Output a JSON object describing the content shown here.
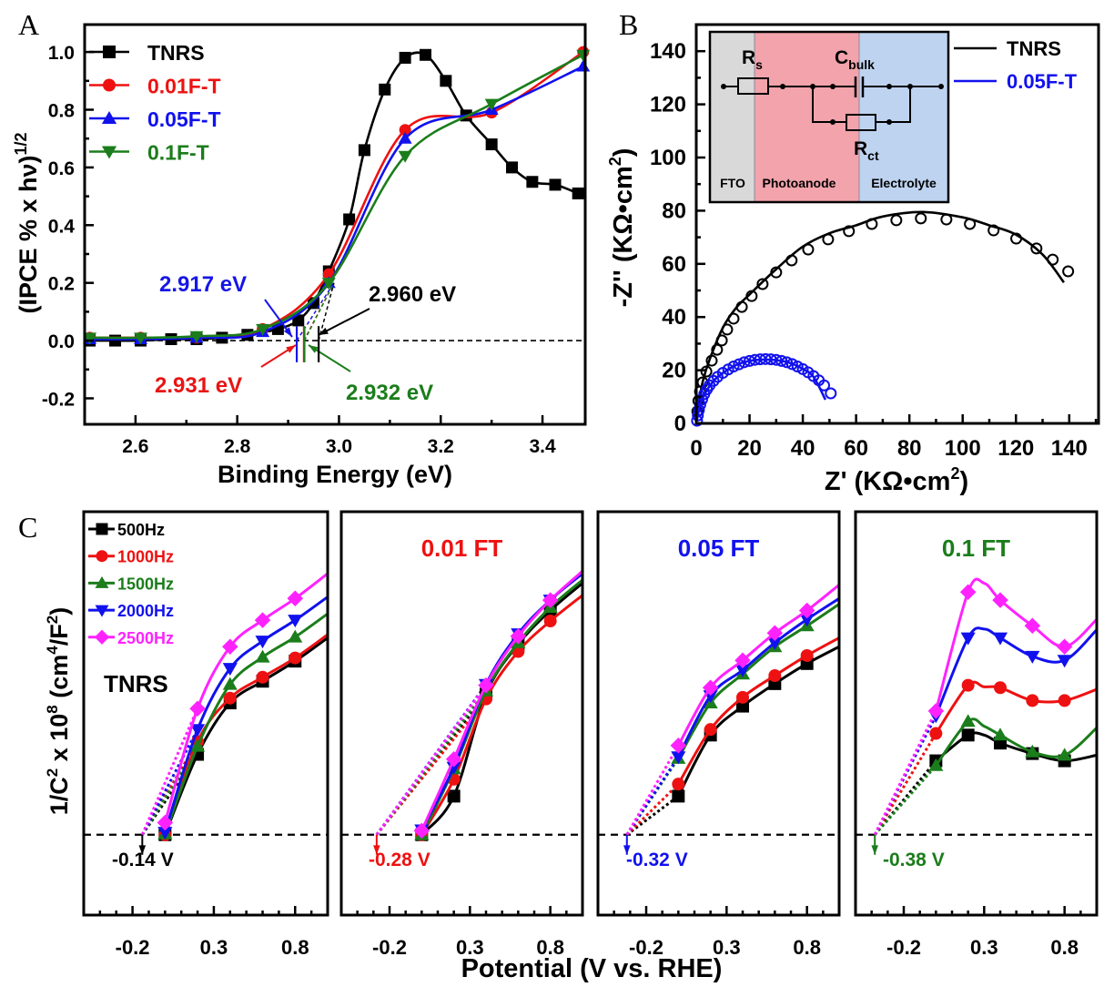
{
  "panel_labels": {
    "a": "A",
    "b": "B",
    "c": "C"
  },
  "colors": {
    "black": "#000000",
    "red": "#ee1111",
    "blue": "#1111ee",
    "green": "#1b7d1b",
    "magenta": "#ff22ff"
  },
  "chart_data": [
    {
      "panel": "A",
      "type": "line",
      "xlabel": "Binding Energy (eV)",
      "ylabel": "(IPCE % x hν)",
      "ylabel_sup": "1/2",
      "xlim": [
        2.5,
        3.484
      ],
      "ylim": [
        -0.29,
        1.095
      ],
      "grid": false,
      "xticks": [
        2.6,
        2.8,
        3.0,
        3.2,
        3.4
      ],
      "xtick_labels": [
        "2.6",
        "2.8",
        "3.0",
        "3.2",
        "3.4"
      ],
      "yticks": [
        -0.2,
        0.0,
        0.2,
        0.4,
        0.6,
        0.8,
        1.0
      ],
      "ytick_labels": [
        "-0.2",
        "0.0",
        "0.2",
        "0.4",
        "0.6",
        "0.8",
        "1.0"
      ],
      "legend_position": "top-left",
      "baseline": 0,
      "series": [
        {
          "name": "TNRS",
          "color": "#000000",
          "marker": "square",
          "x": [
            2.51,
            2.56,
            2.61,
            2.67,
            2.72,
            2.77,
            2.82,
            2.88,
            2.92,
            2.95,
            2.98,
            3.02,
            3.05,
            3.09,
            3.13,
            3.17,
            3.21,
            3.25,
            3.3,
            3.34,
            3.38,
            3.425,
            3.47
          ],
          "y": [
            0.0,
            0.0,
            0.0,
            0.005,
            0.005,
            0.01,
            0.02,
            0.04,
            0.07,
            0.13,
            0.24,
            0.42,
            0.66,
            0.87,
            0.98,
            0.99,
            0.9,
            0.78,
            0.68,
            0.6,
            0.55,
            0.54,
            0.51
          ]
        },
        {
          "name": "0.01F-T",
          "color": "#ee1111",
          "marker": "circle",
          "x": [
            2.51,
            2.61,
            2.72,
            2.85,
            2.98,
            3.13,
            3.3,
            3.48
          ],
          "y": [
            0.01,
            0.01,
            0.01,
            0.04,
            0.23,
            0.73,
            0.79,
            1.0
          ]
        },
        {
          "name": "0.05F-T",
          "color": "#1111ee",
          "marker": "triangle-up",
          "x": [
            2.51,
            2.61,
            2.72,
            2.85,
            2.98,
            3.13,
            3.3,
            3.48
          ],
          "y": [
            0.005,
            0.005,
            0.01,
            0.03,
            0.2,
            0.7,
            0.8,
            0.95
          ]
        },
        {
          "name": "0.1F-T",
          "color": "#1b7d1b",
          "marker": "triangle-down",
          "x": [
            2.51,
            2.61,
            2.72,
            2.85,
            2.98,
            3.13,
            3.3,
            3.48
          ],
          "y": [
            0.01,
            0.01,
            0.015,
            0.04,
            0.2,
            0.64,
            0.82,
            0.99
          ]
        }
      ],
      "annotations": [
        {
          "label": "2.917 eV",
          "value": 2.917,
          "color": "#1616e6"
        },
        {
          "label": "2.931 eV",
          "value": 2.931,
          "color": "#e81414"
        },
        {
          "label": "2.932 eV",
          "value": 2.932,
          "color": "#1b7d1b"
        },
        {
          "label": "2.960 eV",
          "value": 2.96,
          "color": "#000000"
        }
      ]
    },
    {
      "panel": "B",
      "type": "scatter",
      "xlabel": "Z' (KΩ•cm",
      "xlabel_sup": "2",
      "xlabel_end": ")",
      "ylabel": "-Z'' (KΩ•cm",
      "ylabel_sup": "2",
      "ylabel_end": ")",
      "xlim": [
        0,
        151
      ],
      "ylim": [
        0,
        150
      ],
      "grid": false,
      "xticks": [
        0,
        20,
        40,
        60,
        80,
        100,
        120,
        140
      ],
      "xtick_labels": [
        "0",
        "20",
        "40",
        "60",
        "80",
        "100",
        "120",
        "140"
      ],
      "yticks": [
        0,
        20,
        40,
        60,
        80,
        100,
        120,
        140
      ],
      "ytick_labels": [
        "0",
        "20",
        "40",
        "60",
        "80",
        "100",
        "120",
        "140"
      ],
      "legend_position": "top-right",
      "series": [
        {
          "name": "TNRS",
          "color": "#000000",
          "points_x": [
            0.4,
            0.8,
            1.4,
            2.4,
            3.8,
            5.8,
            7.8,
            9.6,
            11.6,
            14.0,
            17.1,
            20.8,
            24.9,
            30.0,
            35.8,
            42.0,
            49.5,
            57.3,
            65.9,
            75.1,
            84.3,
            93.9,
            102.7,
            111.6,
            120.1,
            127.7,
            133.8,
            139.6
          ],
          "points_y": [
            4.5,
            8.5,
            12.0,
            15.4,
            19.5,
            23.6,
            27.7,
            31.2,
            35.3,
            39.4,
            43.8,
            47.9,
            52.4,
            56.8,
            61.3,
            65.4,
            69.2,
            72.3,
            75.0,
            76.4,
            77.1,
            76.7,
            75.0,
            72.6,
            69.5,
            65.8,
            61.6,
            57.2
          ],
          "fit_x": [
            0.2,
            1,
            2.5,
            5,
            10,
            15,
            20,
            30,
            40,
            50,
            60,
            70,
            85,
            100,
            110,
            120,
            130,
            138
          ],
          "fit_y": [
            2,
            8,
            16,
            24,
            36,
            43.5,
            48.5,
            58,
            66.5,
            71.5,
            74.5,
            77.8,
            79.5,
            77.5,
            74.5,
            71,
            63.5,
            53
          ]
        },
        {
          "name": "0.05F-T",
          "color": "#1111ee",
          "points_x": [
            0.3,
            0.6,
            1,
            1.5,
            2.2,
            3,
            4,
            5,
            6.5,
            8,
            10,
            12,
            14,
            16,
            18,
            20,
            22,
            24,
            26,
            28,
            30,
            32,
            34,
            36,
            38,
            40,
            42,
            44,
            46,
            48,
            50.5
          ],
          "points_y": [
            1,
            3,
            5,
            7,
            9,
            11,
            12.8,
            14.3,
            16,
            17.5,
            19,
            20.3,
            21.4,
            22.2,
            23,
            23.5,
            23.9,
            24.1,
            24.2,
            24.1,
            23.9,
            23.5,
            23,
            22.3,
            21.4,
            20.4,
            19.2,
            17.8,
            16.2,
            14.3,
            11.3
          ],
          "fit_x": [
            0.2,
            1,
            2,
            4,
            7,
            10,
            15,
            20,
            25,
            30,
            35,
            40,
            44,
            48.5
          ],
          "fit_y": [
            1,
            5,
            8.5,
            12.5,
            16.5,
            19,
            22,
            23.5,
            24,
            23.8,
            22.8,
            20.5,
            17.5,
            8.9
          ]
        }
      ],
      "inset": {
        "regions": [
          {
            "label": "FTO",
            "color": "#d9d9d9"
          },
          {
            "label": "Photoanode",
            "color": "#f2a3ab"
          },
          {
            "label": "Electrolyte",
            "color": "#bed3f0"
          }
        ],
        "rs": {
          "main": "R",
          "sub": "s"
        },
        "cbulk": {
          "main": "C",
          "sub": "bulk"
        },
        "rct": {
          "main": "R",
          "sub": "ct"
        }
      }
    },
    {
      "panel": "C",
      "type": "line",
      "xlabel": "Potential (V vs. RHE)",
      "ylabel_parts": [
        "1/C",
        "2",
        " x 10",
        "8",
        " (cm",
        "4",
        "/F",
        "2",
        ")"
      ],
      "xlim": [
        -0.5,
        1.0
      ],
      "ylim": [
        -1.0,
        4.02
      ],
      "grid": false,
      "xticks": [
        -0.2,
        0.3,
        0.8
      ],
      "xtick_labels": [
        "-0.2",
        "0.3",
        "0.8"
      ],
      "legend_position": "top-left",
      "legend": [
        {
          "name": "500Hz",
          "color": "#000000",
          "marker": "square"
        },
        {
          "name": "1000Hz",
          "color": "#ee1111",
          "marker": "circle"
        },
        {
          "name": "1500Hz",
          "color": "#1b7d1b",
          "marker": "triangle-up"
        },
        {
          "name": "2000Hz",
          "color": "#1111ee",
          "marker": "triangle-down"
        },
        {
          "name": "2500Hz",
          "color": "#ff22ff",
          "marker": "diamond"
        }
      ],
      "subplots": [
        {
          "title": "TNRS",
          "title_color": "#000000",
          "onset": -0.14,
          "onset_label": "-0.14 V",
          "onset_color": "#000000",
          "fit_to_x": 0.2,
          "x": [
            0,
            0.2,
            0.4,
            0.6,
            0.8,
            1.0
          ],
          "series": [
            [
              0,
              1.0,
              1.64,
              1.91,
              2.16,
              2.45
            ],
            [
              0,
              1.16,
              1.7,
              1.96,
              2.2,
              2.49
            ],
            [
              0.01,
              1.1,
              1.87,
              2.21,
              2.46,
              2.75
            ],
            [
              0.03,
              1.31,
              2.07,
              2.41,
              2.67,
              2.96
            ],
            [
              0.15,
              1.57,
              2.34,
              2.67,
              2.94,
              3.25
            ]
          ]
        },
        {
          "title": "0.01 FT",
          "title_color": "#ee1111",
          "onset": -0.28,
          "onset_label": "-0.28 V",
          "onset_color": "#ee1111",
          "fit_to_x": 0.4,
          "x": [
            0,
            0.2,
            0.4,
            0.6,
            0.8,
            1.0
          ],
          "series": [
            [
              0,
              0.48,
              1.75,
              2.37,
              2.79,
              3.13
            ],
            [
              0,
              0.69,
              1.69,
              2.28,
              2.66,
              2.98
            ],
            [
              0,
              0.82,
              1.79,
              2.39,
              2.83,
              3.17
            ],
            [
              0.06,
              0.84,
              1.87,
              2.5,
              2.92,
              3.25
            ],
            [
              0.05,
              0.94,
              1.86,
              2.47,
              2.92,
              3.28
            ]
          ]
        },
        {
          "title": "0.05 FT",
          "title_color": "#1111ee",
          "onset": -0.32,
          "onset_label": "-0.32 V",
          "onset_color": "#1111ee",
          "fit_to_x": 0,
          "x": [
            0,
            0.2,
            0.4,
            0.6,
            0.8,
            1.0
          ],
          "series": [
            [
              0.48,
              1.24,
              1.6,
              1.88,
              2.13,
              2.34
            ],
            [
              0.63,
              1.31,
              1.71,
              1.98,
              2.23,
              2.45
            ],
            [
              0.95,
              1.64,
              2.0,
              2.34,
              2.6,
              2.87
            ],
            [
              0.97,
              1.73,
              2.05,
              2.39,
              2.68,
              2.94
            ],
            [
              1.11,
              1.83,
              2.17,
              2.51,
              2.79,
              3.11
            ]
          ]
        },
        {
          "title": "0.1 FT",
          "title_color": "#1b7d1b",
          "onset": -0.38,
          "onset_label": "-0.38 V",
          "onset_color": "#1b7d1b",
          "fit_to_x": 0,
          "x": [
            0,
            0.2,
            0.3,
            0.4,
            0.6,
            0.8,
            1.0
          ],
          "series": [
            [
              0.92,
              1.24,
              1.24,
              1.14,
              1.01,
              0.92,
              0.99
            ],
            [
              1.26,
              1.86,
              1.84,
              1.83,
              1.67,
              1.67,
              1.81
            ],
            [
              0.86,
              1.41,
              1.35,
              1.24,
              1.03,
              0.99,
              1.33
            ],
            [
              1.48,
              2.45,
              2.56,
              2.45,
              2.22,
              2.17,
              2.55
            ],
            [
              1.54,
              3.02,
              3.13,
              2.92,
              2.6,
              2.34,
              2.68
            ]
          ]
        }
      ]
    }
  ]
}
